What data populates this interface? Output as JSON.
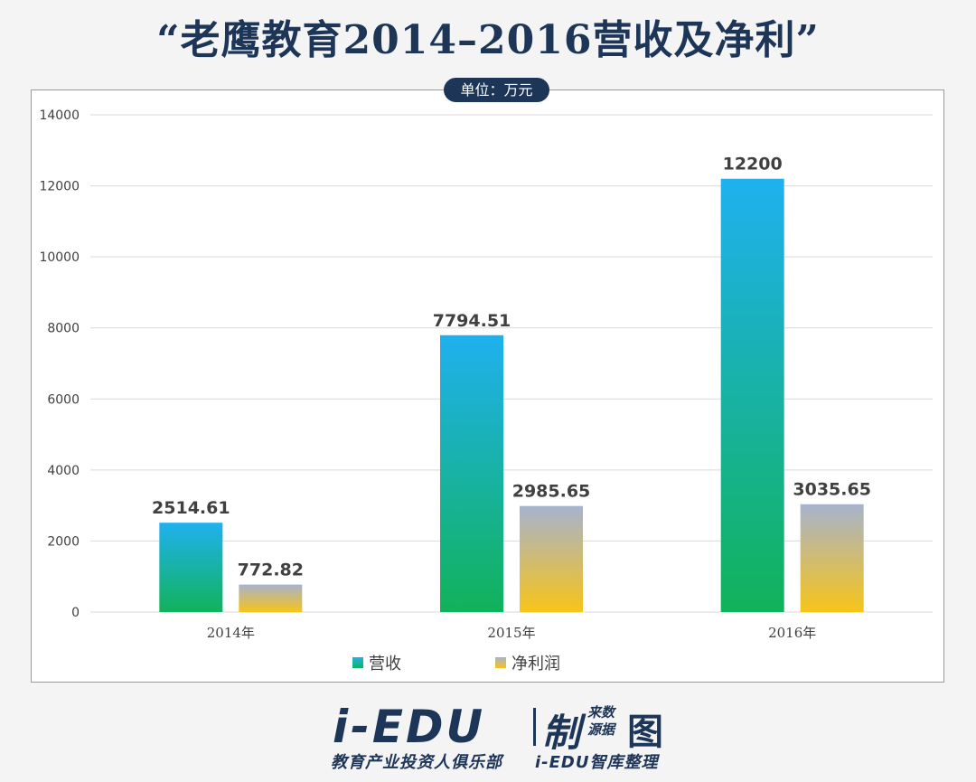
{
  "chart_data": {
    "type": "bar",
    "title": "“老鹰教育2014–2016营收及净利”",
    "unit_label": "单位：万元",
    "categories": [
      "2014年",
      "2015年",
      "2016年"
    ],
    "series": [
      {
        "name": "营收",
        "values": [
          2514.61,
          7794.51,
          12200
        ],
        "labels": [
          "2514.61",
          "7794.51",
          "12200"
        ]
      },
      {
        "name": "净利润",
        "values": [
          772.82,
          2985.65,
          3035.65
        ],
        "labels": [
          "772.82",
          "2985.65",
          "3035.65"
        ]
      }
    ],
    "ylim": [
      0,
      14000
    ],
    "yticks": [
      0,
      2000,
      4000,
      6000,
      8000,
      10000,
      12000,
      14000
    ],
    "grid": true,
    "legend_position": "bottom-center",
    "colors": {
      "revenue_top": "#1fb1ef",
      "revenue_bottom": "#11b25a",
      "profit_top": "#a7b3cd",
      "profit_bottom": "#f7c418",
      "grid": "#d9d9d9",
      "label": "#404040"
    }
  },
  "footer": {
    "brand": "i-EDU",
    "make": "制",
    "source": "来数源据",
    "figure": "图",
    "sub_left": "教育产业投资人俱乐部",
    "sub_right": "i-EDU智库整理"
  }
}
